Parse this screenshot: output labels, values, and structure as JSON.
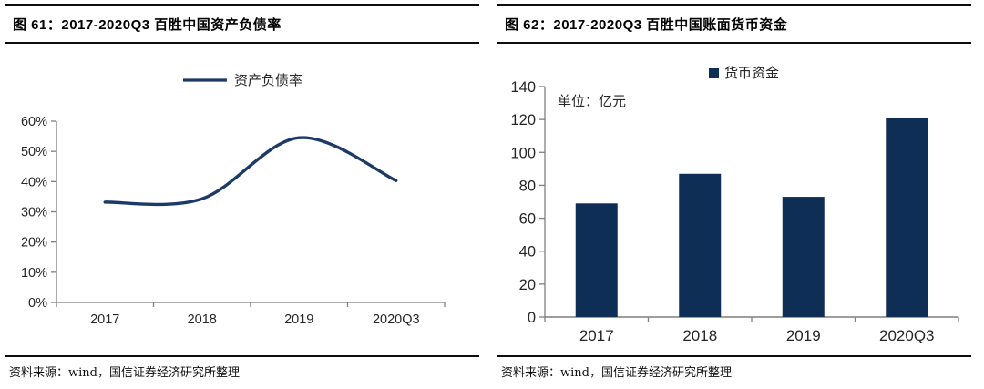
{
  "accent_color": "#0F2E56",
  "line_color": "#1B3A68",
  "axis_color": "#7f7f7f",
  "tick_label_color": "#262626",
  "left_panel": {
    "title": "图 61：2017-2020Q3 百胜中国资产负债率",
    "source": "资料来源：wind，国信证券经济研究所整理"
  },
  "right_panel": {
    "title": "图 62：2017-2020Q3 百胜中国账面货币资金",
    "source": "资料来源：wind，国信证券经济研究所整理"
  },
  "chart_data": [
    {
      "type": "line",
      "title": "2017-2020Q3 百胜中国资产负债率",
      "categories": [
        "2017",
        "2018",
        "2019",
        "2020Q3"
      ],
      "series": [
        {
          "name": "资产负债率",
          "values": [
            33.2,
            34.3,
            54.5,
            40.3
          ]
        }
      ],
      "xlabel": "",
      "ylabel": "",
      "ylim": [
        0,
        60
      ],
      "ytick_step": 10,
      "ytick_suffix": "%",
      "grid": false,
      "legend_position": "top"
    },
    {
      "type": "bar",
      "title": "2017-2020Q3 百胜中国账面货币资金",
      "categories": [
        "2017",
        "2018",
        "2019",
        "2020Q3"
      ],
      "series": [
        {
          "name": "货币资金",
          "values": [
            69,
            87,
            73,
            121
          ]
        }
      ],
      "unit_label": "单位：亿元",
      "xlabel": "",
      "ylabel": "",
      "ylim": [
        0,
        140
      ],
      "ytick_step": 20,
      "ytick_suffix": "",
      "grid": false,
      "legend_position": "top"
    }
  ]
}
